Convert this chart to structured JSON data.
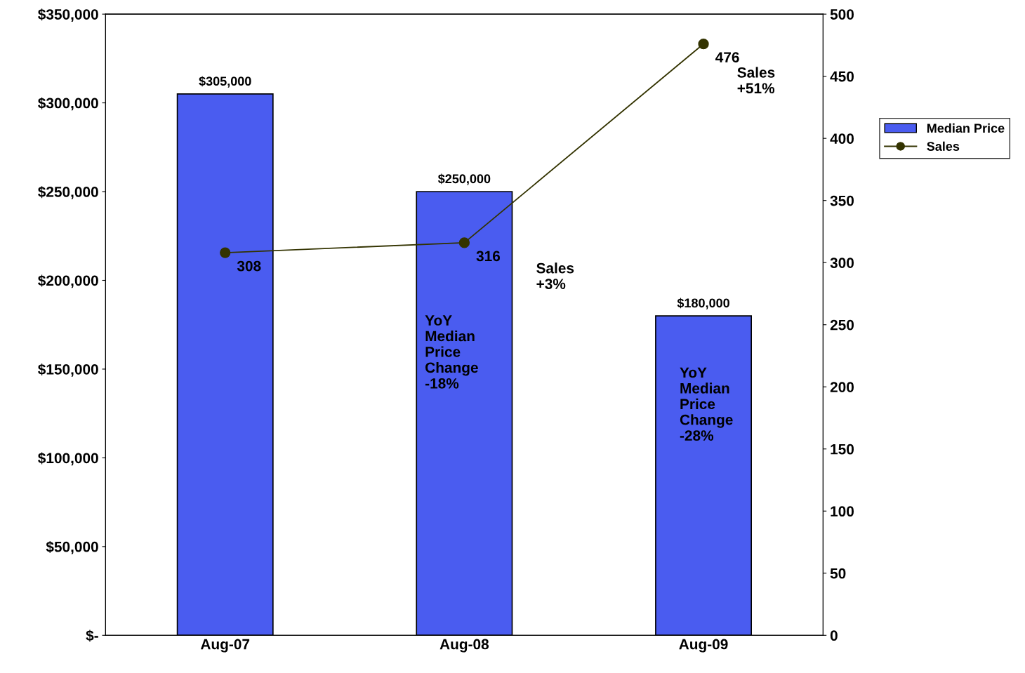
{
  "chart_data": {
    "type": "bar",
    "categories": [
      "Aug-07",
      "Aug-08",
      "Aug-09"
    ],
    "series": [
      {
        "name": "Median Price",
        "color": "#4a5cf0",
        "values": [
          305000,
          250000,
          180000
        ],
        "value_labels": [
          "$305,000",
          "$250,000",
          "$180,000"
        ]
      },
      {
        "name": "Sales",
        "type": "line",
        "axis": "y2",
        "color": "#333300",
        "marker": "circle",
        "values": [
          308,
          316,
          476
        ],
        "value_labels": [
          "308",
          "316",
          "476"
        ]
      }
    ],
    "ylim": [
      0,
      350000
    ],
    "yticks": [
      {
        "value": 0,
        "label": "$-"
      },
      {
        "value": 50000,
        "label": "$50,000"
      },
      {
        "value": 100000,
        "label": "$100,000"
      },
      {
        "value": 150000,
        "label": "$150,000"
      },
      {
        "value": 200000,
        "label": "$200,000"
      },
      {
        "value": 250000,
        "label": "$250,000"
      },
      {
        "value": 300000,
        "label": "$300,000"
      },
      {
        "value": 350000,
        "label": "$350,000"
      }
    ],
    "y2lim": [
      0,
      500
    ],
    "y2ticks": [
      0,
      50,
      100,
      150,
      200,
      250,
      300,
      350,
      400,
      450,
      500
    ],
    "annotations": [
      "Sales\n+3%",
      "Sales\n+51%",
      "YoY\nMedian\nPrice\nChange\n-18%",
      "YoY\nMedian\nPrice\nChange\n-28%"
    ],
    "grid": false,
    "legend": "right"
  }
}
